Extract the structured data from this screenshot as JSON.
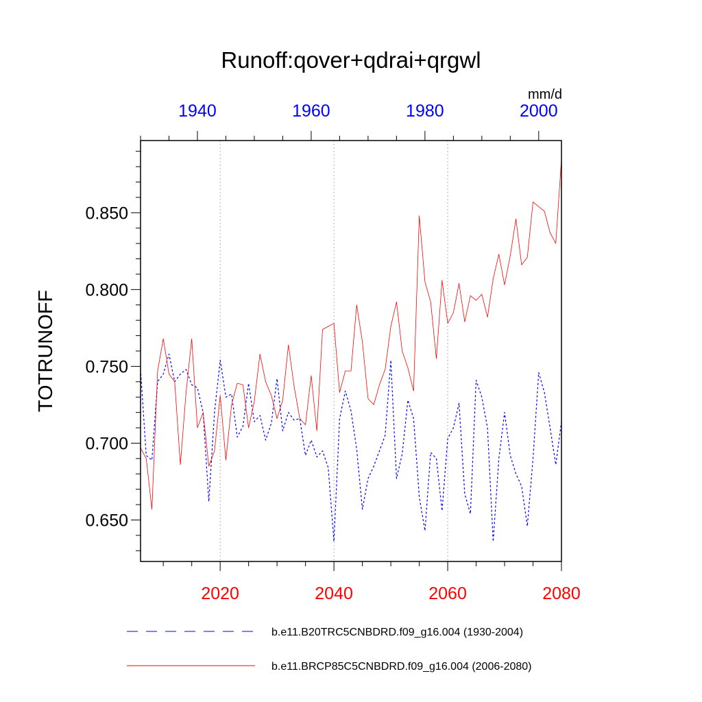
{
  "chart_data": {
    "type": "line",
    "title": "Runoff:qover+qdrai+qrgwl",
    "ylabel": "TOTRUNOFF",
    "units": "mm/d",
    "ylim": [
      0.623,
      0.897
    ],
    "yticks": [
      0.65,
      0.7,
      0.75,
      0.8,
      0.85
    ],
    "ytick_labels": [
      "0.650",
      "0.700",
      "0.750",
      "0.800",
      "0.850"
    ],
    "x_bottom": {
      "range": [
        2006,
        2080
      ],
      "ticks": [
        2020,
        2040,
        2060,
        2080
      ],
      "color": "#ff0000"
    },
    "x_top": {
      "range": [
        1930,
        2004
      ],
      "ticks": [
        1940,
        1960,
        1980,
        2000
      ],
      "color": "#0000ff"
    },
    "grid": "vertical dotted at bottom ticks",
    "legend_position": "bottom",
    "series": [
      {
        "name": "b.e11.B20TRC5CNBDRD.f09_g16.004 (1930-2004)",
        "axis": "top",
        "style": "dashed",
        "color": "#0000ff",
        "x": [
          1930,
          1931,
          1932,
          1933,
          1934,
          1935,
          1936,
          1937,
          1938,
          1939,
          1940,
          1941,
          1942,
          1943,
          1944,
          1945,
          1946,
          1947,
          1948,
          1949,
          1950,
          1951,
          1952,
          1953,
          1954,
          1955,
          1956,
          1957,
          1958,
          1959,
          1960,
          1961,
          1962,
          1963,
          1964,
          1965,
          1966,
          1967,
          1968,
          1969,
          1970,
          1971,
          1972,
          1973,
          1974,
          1975,
          1976,
          1977,
          1978,
          1979,
          1980,
          1981,
          1982,
          1983,
          1984,
          1985,
          1986,
          1987,
          1988,
          1989,
          1990,
          1991,
          1992,
          1993,
          1994,
          1995,
          1996,
          1997,
          1998,
          1999,
          2000,
          2001,
          2002,
          2003,
          2004
        ],
        "values": [
          0.748,
          0.692,
          0.689,
          0.74,
          0.745,
          0.758,
          0.74,
          0.745,
          0.748,
          0.738,
          0.736,
          0.72,
          0.662,
          0.72,
          0.754,
          0.73,
          0.732,
          0.704,
          0.711,
          0.739,
          0.714,
          0.718,
          0.702,
          0.713,
          0.742,
          0.708,
          0.72,
          0.715,
          0.716,
          0.692,
          0.702,
          0.691,
          0.695,
          0.684,
          0.636,
          0.716,
          0.734,
          0.721,
          0.696,
          0.657,
          0.677,
          0.685,
          0.695,
          0.705,
          0.754,
          0.677,
          0.693,
          0.728,
          0.716,
          0.665,
          0.643,
          0.694,
          0.69,
          0.656,
          0.703,
          0.71,
          0.726,
          0.667,
          0.654,
          0.741,
          0.73,
          0.71,
          0.636,
          0.69,
          0.72,
          0.692,
          0.68,
          0.672,
          0.646,
          0.69,
          0.746,
          0.733,
          0.71,
          0.686,
          0.714
        ]
      },
      {
        "name": "b.e11.BRCP85C5CNBDRD.f09_g16.004 (2006-2080)",
        "axis": "bottom",
        "style": "solid",
        "color": "#ff0000",
        "x": [
          2006,
          2007,
          2008,
          2009,
          2010,
          2011,
          2012,
          2013,
          2014,
          2015,
          2016,
          2017,
          2018,
          2019,
          2020,
          2021,
          2022,
          2023,
          2024,
          2025,
          2026,
          2027,
          2028,
          2029,
          2030,
          2031,
          2032,
          2033,
          2034,
          2035,
          2036,
          2037,
          2038,
          2039,
          2040,
          2041,
          2042,
          2043,
          2044,
          2045,
          2046,
          2047,
          2048,
          2049,
          2050,
          2051,
          2052,
          2053,
          2054,
          2055,
          2056,
          2057,
          2058,
          2059,
          2060,
          2061,
          2062,
          2063,
          2064,
          2065,
          2066,
          2067,
          2068,
          2069,
          2070,
          2071,
          2072,
          2073,
          2074,
          2075,
          2076,
          2077,
          2078,
          2079,
          2080
        ],
        "values": [
          0.697,
          0.69,
          0.657,
          0.747,
          0.768,
          0.745,
          0.74,
          0.686,
          0.733,
          0.768,
          0.71,
          0.72,
          0.685,
          0.695,
          0.731,
          0.689,
          0.725,
          0.739,
          0.738,
          0.71,
          0.727,
          0.758,
          0.74,
          0.731,
          0.716,
          0.728,
          0.764,
          0.737,
          0.716,
          0.712,
          0.744,
          0.708,
          0.774,
          0.776,
          0.778,
          0.733,
          0.747,
          0.747,
          0.79,
          0.766,
          0.729,
          0.725,
          0.738,
          0.748,
          0.776,
          0.792,
          0.76,
          0.749,
          0.734,
          0.848,
          0.805,
          0.792,
          0.755,
          0.806,
          0.778,
          0.785,
          0.804,
          0.779,
          0.796,
          0.793,
          0.797,
          0.782,
          0.807,
          0.823,
          0.803,
          0.822,
          0.846,
          0.816,
          0.821,
          0.857,
          0.854,
          0.851,
          0.837,
          0.83,
          0.885
        ]
      }
    ]
  }
}
